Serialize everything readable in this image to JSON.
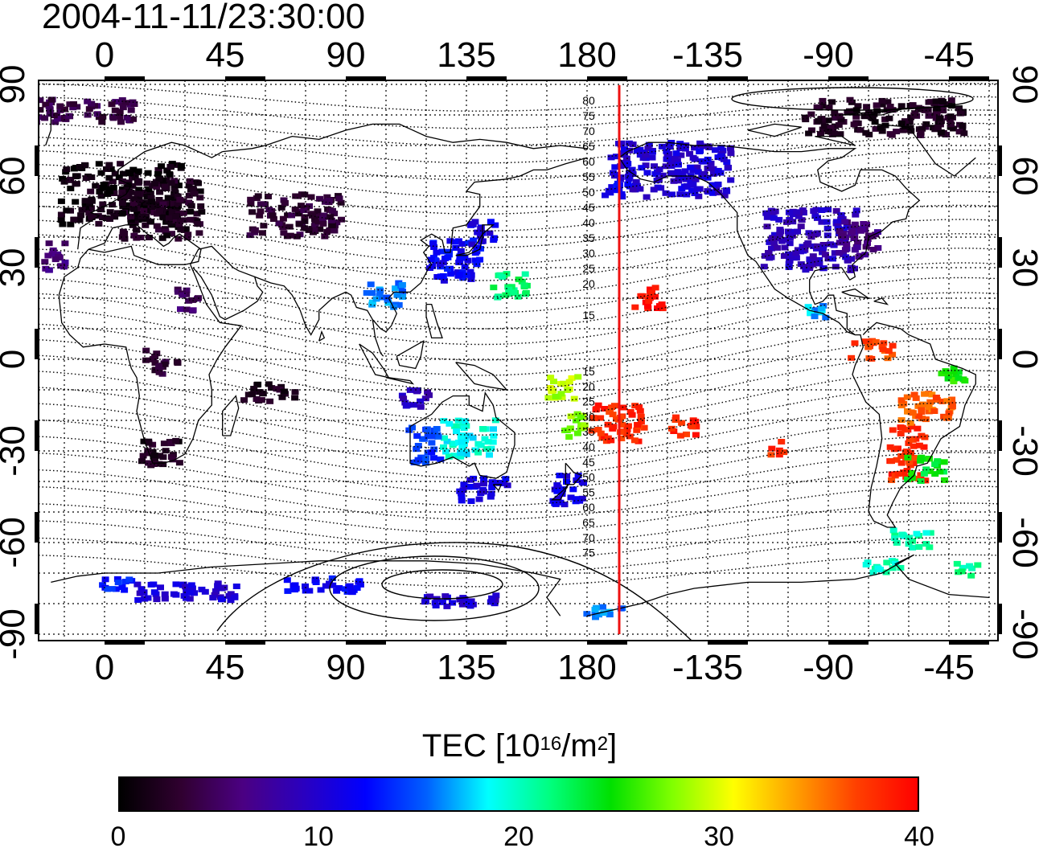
{
  "title": "2004-11-11/23:30:00",
  "top_lon_labels": [
    "0",
    "45",
    "90",
    "135",
    "180",
    "-135",
    "-90",
    "-45"
  ],
  "bottom_lon_labels": [
    "0",
    "45",
    "90",
    "135",
    "180",
    "-135",
    "-90",
    "-45"
  ],
  "left_lat_labels": [
    "90",
    "60",
    "30",
    "0",
    "-30",
    "-60",
    "-90"
  ],
  "right_lat_labels": [
    "90",
    "60",
    "30",
    "0",
    "-30",
    "-60",
    "-90"
  ],
  "magnetic_latitude_labels": {
    "north": [
      "80",
      "75",
      "70",
      "65",
      "60",
      "55",
      "50",
      "45",
      "40",
      "35",
      "30",
      "25",
      "20",
      "15"
    ],
    "south": [
      "15",
      "20",
      "25",
      "30",
      "35",
      "40",
      "45",
      "50",
      "55",
      "60",
      "65",
      "70",
      "75"
    ]
  },
  "colorbar": {
    "title_prefix": "TEC  [10",
    "title_exp1": "16",
    "title_mid": "/m",
    "title_exp2": "2",
    "title_suffix": "]",
    "ticks": [
      "0",
      "10",
      "20",
      "30",
      "40"
    ],
    "min": 0,
    "max": 40,
    "colors": [
      "#000000",
      "#300030",
      "#4b0082",
      "#2a00c0",
      "#0000ff",
      "#0060ff",
      "#00ffff",
      "#00ff80",
      "#00e000",
      "#80ff00",
      "#ffff00",
      "#ffa000",
      "#ff4000",
      "#ff0000"
    ]
  },
  "terminator_marker": {
    "label": "red vertical line",
    "color": "#ee1111",
    "longitude": -168
  },
  "tec_patches": [
    {
      "lon": 5,
      "lat": 55,
      "w": 45,
      "h": 20,
      "tec": 1
    },
    {
      "lon": 20,
      "lat": 50,
      "w": 30,
      "h": 20,
      "tec": 2
    },
    {
      "lon": 70,
      "lat": 48,
      "w": 35,
      "h": 14,
      "tec": 3
    },
    {
      "lon": -10,
      "lat": 82,
      "w": 40,
      "h": 8,
      "tec": 4
    },
    {
      "lon": -70,
      "lat": 80,
      "w": 60,
      "h": 12,
      "tec": 2
    },
    {
      "lon": -150,
      "lat": 63,
      "w": 45,
      "h": 18,
      "tec": 10
    },
    {
      "lon": -170,
      "lat": 57,
      "w": 10,
      "h": 6,
      "tec": 12
    },
    {
      "lon": -98,
      "lat": 40,
      "w": 35,
      "h": 20,
      "tec": 9
    },
    {
      "lon": -80,
      "lat": 40,
      "w": 15,
      "h": 12,
      "tec": 6
    },
    {
      "lon": 130,
      "lat": 33,
      "w": 20,
      "h": 14,
      "tec": 12
    },
    {
      "lon": 140,
      "lat": 42,
      "w": 10,
      "h": 8,
      "tec": 11
    },
    {
      "lon": 103,
      "lat": 22,
      "w": 14,
      "h": 8,
      "tec": 16
    },
    {
      "lon": 150,
      "lat": 25,
      "w": 15,
      "h": 8,
      "tec": 22
    },
    {
      "lon": -158,
      "lat": 21,
      "w": 12,
      "h": 7,
      "tec": 39
    },
    {
      "lon": -170,
      "lat": -20,
      "w": 20,
      "h": 12,
      "tec": 38
    },
    {
      "lon": -145,
      "lat": -21,
      "w": 10,
      "h": 7,
      "tec": 38
    },
    {
      "lon": 175,
      "lat": -21,
      "w": 10,
      "h": 8,
      "tec": 28
    },
    {
      "lon": 170,
      "lat": -8,
      "w": 12,
      "h": 8,
      "tec": 29
    },
    {
      "lon": 135,
      "lat": -25,
      "w": 20,
      "h": 12,
      "tec": 19
    },
    {
      "lon": 118,
      "lat": -27,
      "w": 12,
      "h": 12,
      "tec": 14
    },
    {
      "lon": 140,
      "lat": -42,
      "w": 18,
      "h": 8,
      "tec": 11
    },
    {
      "lon": 172,
      "lat": -42,
      "w": 12,
      "h": 10,
      "tec": 11
    },
    {
      "lon": -62,
      "lat": -30,
      "w": 14,
      "h": 18,
      "tec": 38
    },
    {
      "lon": -55,
      "lat": -15,
      "w": 20,
      "h": 10,
      "tec": 36
    },
    {
      "lon": -55,
      "lat": -35,
      "w": 14,
      "h": 8,
      "tec": 24
    },
    {
      "lon": -60,
      "lat": -58,
      "w": 14,
      "h": 6,
      "tec": 20
    },
    {
      "lon": -75,
      "lat": 4,
      "w": 16,
      "h": 6,
      "tec": 37
    },
    {
      "lon": -95,
      "lat": 16,
      "w": 10,
      "h": 5,
      "tec": 17
    },
    {
      "lon": -45,
      "lat": -5,
      "w": 10,
      "h": 6,
      "tec": 25
    },
    {
      "lon": -110,
      "lat": -28,
      "w": 6,
      "h": 5,
      "tec": 38
    },
    {
      "lon": 20,
      "lat": -30,
      "w": 15,
      "h": 10,
      "tec": 2
    },
    {
      "lon": 20,
      "lat": 0,
      "w": 12,
      "h": 8,
      "tec": 3
    },
    {
      "lon": -20,
      "lat": 35,
      "w": 8,
      "h": 10,
      "tec": 6
    },
    {
      "lon": 30,
      "lat": 20,
      "w": 8,
      "h": 8,
      "tec": 5
    },
    {
      "lon": 115,
      "lat": -12,
      "w": 12,
      "h": 6,
      "tec": 9
    },
    {
      "lon": 60,
      "lat": -10,
      "w": 20,
      "h": 6,
      "tec": 2
    },
    {
      "lon": 30,
      "lat": -75,
      "w": 40,
      "h": 6,
      "tec": 10
    },
    {
      "lon": 80,
      "lat": -73,
      "w": 30,
      "h": 5,
      "tec": 12
    },
    {
      "lon": 130,
      "lat": -78,
      "w": 30,
      "h": 4,
      "tec": 10
    },
    {
      "lon": -175,
      "lat": -82,
      "w": 14,
      "h": 4,
      "tec": 16
    },
    {
      "lon": -70,
      "lat": -67,
      "w": 16,
      "h": 4,
      "tec": 20
    },
    {
      "lon": -40,
      "lat": -68,
      "w": 10,
      "h": 4,
      "tec": 21
    },
    {
      "lon": 5,
      "lat": -73,
      "w": 15,
      "h": 4,
      "tec": 13
    }
  ]
}
